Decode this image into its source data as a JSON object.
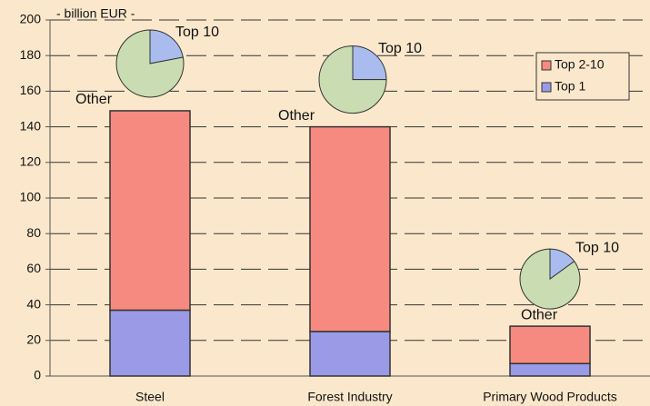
{
  "chart_data": {
    "type": "bar",
    "stacked": true,
    "y_label": "- billion EUR -",
    "categories": [
      "Steel",
      "Forest Industry",
      "Primary Wood Products"
    ],
    "series": [
      {
        "name": "Top 1",
        "color": "#9a9ae6",
        "values": [
          37,
          25,
          7
        ]
      },
      {
        "name": "Top 2-10",
        "color": "#f78a80",
        "values": [
          112,
          115,
          21
        ]
      }
    ],
    "pies": [
      {
        "labels": [
          "Top 10",
          "Other"
        ],
        "values": [
          22,
          78
        ],
        "colors": [
          "#aabcee",
          "#c9dcb2"
        ]
      },
      {
        "labels": [
          "Top 10",
          "Other"
        ],
        "values": [
          25,
          75
        ],
        "colors": [
          "#aabcee",
          "#c9dcb2"
        ]
      },
      {
        "labels": [
          "Top 10",
          "Other"
        ],
        "values": [
          15,
          85
        ],
        "colors": [
          "#aabcee",
          "#c9dcb2"
        ]
      }
    ],
    "ylim": [
      0,
      200
    ],
    "yticks": [
      0,
      20,
      40,
      60,
      80,
      100,
      120,
      140,
      160,
      180,
      200
    ],
    "grid": true,
    "legend": "upper right"
  }
}
